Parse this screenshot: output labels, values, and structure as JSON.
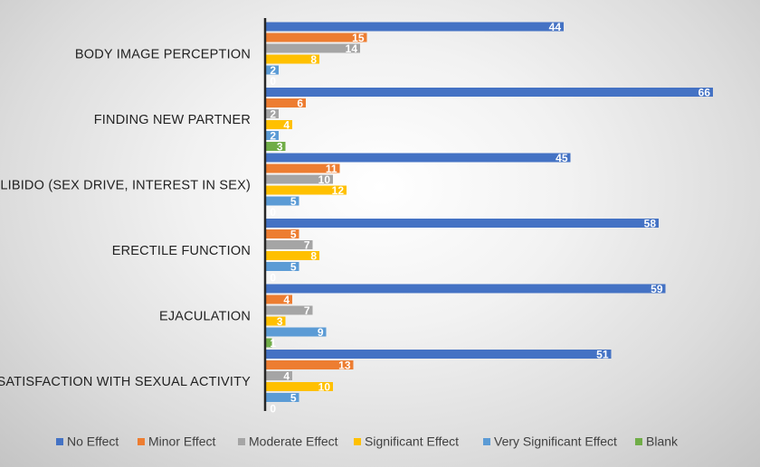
{
  "chart_data": {
    "type": "bar",
    "orientation": "horizontal",
    "categories": [
      "BODY IMAGE PERCEPTION",
      "FINDING NEW PARTNER",
      "LIBIDO (SEX DRIVE, INTEREST IN SEX)",
      "ERECTILE FUNCTION",
      "EJACULATION",
      "SATISFACTION WITH SEXUAL ACTIVITY"
    ],
    "series": [
      {
        "name": "No Effect",
        "color": "#4472c4",
        "values": [
          44,
          66,
          45,
          58,
          59,
          51
        ]
      },
      {
        "name": "Minor Effect",
        "color": "#ed7d31",
        "values": [
          15,
          6,
          11,
          5,
          4,
          13
        ]
      },
      {
        "name": "Moderate Effect",
        "color": "#a5a5a5",
        "values": [
          14,
          2,
          10,
          7,
          7,
          4
        ]
      },
      {
        "name": "Significant Effect",
        "color": "#ffc000",
        "values": [
          8,
          4,
          12,
          8,
          3,
          10
        ]
      },
      {
        "name": "Very Significant Effect",
        "color": "#5b9bd5",
        "values": [
          2,
          2,
          5,
          5,
          9,
          5
        ]
      },
      {
        "name": "Blank",
        "color": "#70ad47",
        "values": [
          0,
          3,
          0,
          0,
          1,
          0
        ]
      }
    ],
    "xlim": [
      0,
      67
    ],
    "grid": false,
    "legend_position": "bottom"
  }
}
